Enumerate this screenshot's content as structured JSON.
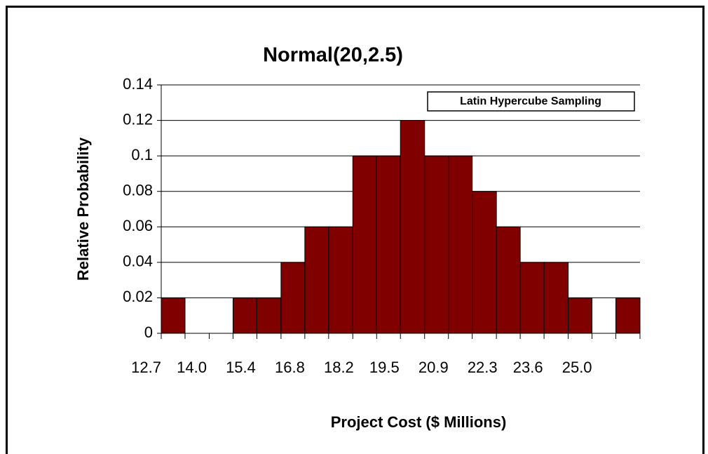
{
  "chart_data": {
    "type": "histogram",
    "title": "Normal(20,2.5)",
    "annotation": "Latin Hypercube Sampling",
    "xlabel": "Project Cost ($ Millions)",
    "ylabel": "Relative Probability",
    "bins": [
      12.7,
      13.38,
      14.07,
      14.75,
      15.43,
      16.12,
      16.8,
      17.48,
      18.17,
      18.85,
      19.53,
      20.22,
      20.9,
      21.58,
      22.27,
      22.95,
      23.63,
      24.32,
      25.0,
      25.68,
      26.37
    ],
    "values": [
      0.02,
      0,
      0,
      0.02,
      0.02,
      0.04,
      0.06,
      0.06,
      0.1,
      0.1,
      0.12,
      0.1,
      0.1,
      0.08,
      0.06,
      0.04,
      0.04,
      0.02,
      0,
      0.02
    ],
    "color": "#800000",
    "xlim": [
      12.7,
      26.37
    ],
    "xticks": [
      12.7,
      {
        "value": 14,
        "label": "14.0"
      },
      15.4,
      16.8,
      18.2,
      19.5,
      20.9,
      22.3,
      23.6,
      {
        "value": 25,
        "label": "25.0"
      }
    ],
    "ylim": [
      0,
      0.14
    ],
    "yticks": [
      0,
      0.02,
      0.04,
      0.06,
      0.08,
      0.1,
      0.12,
      0.14
    ],
    "grid": true
  }
}
